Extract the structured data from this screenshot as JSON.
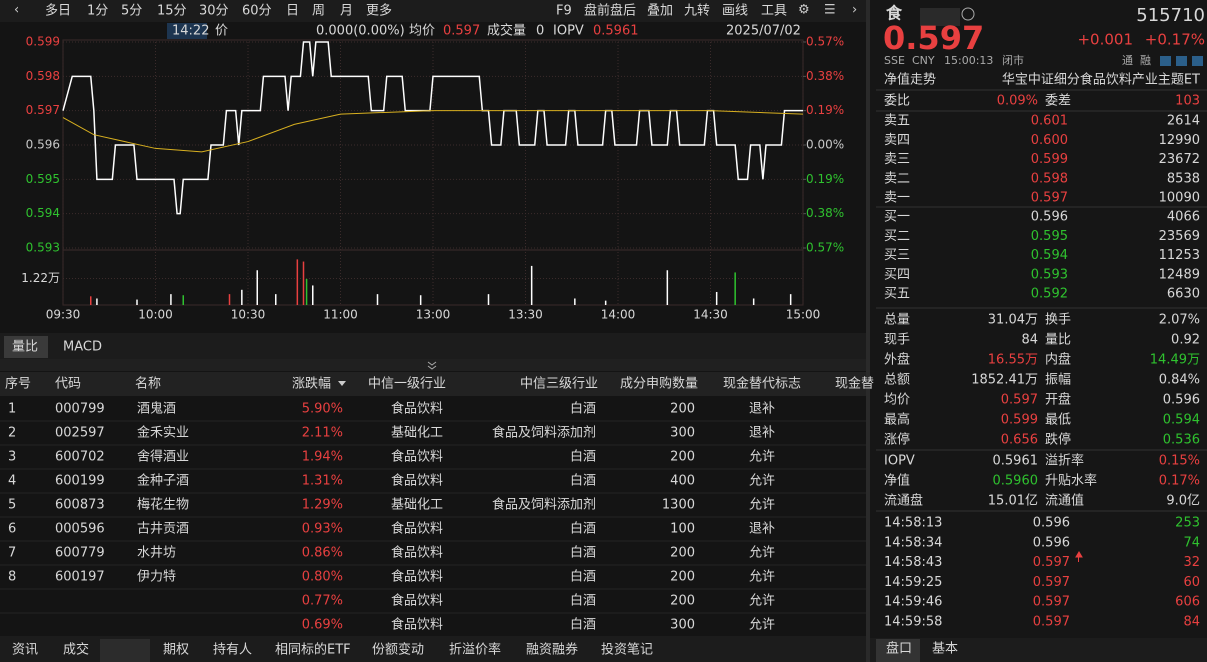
{
  "toolbar": {
    "periods": [
      "多日",
      "1分",
      "5分",
      "15分",
      "30分",
      "60分",
      "日",
      "周",
      "月",
      "更多"
    ],
    "tools": [
      "F9",
      "盘前盘后",
      "叠加",
      "九转",
      "画线",
      "工具"
    ]
  },
  "chart_info": {
    "time": "14:22",
    "price_label": "价",
    "change": "0.000(0.00%)",
    "avg_label": "均价",
    "avg": "0.597",
    "volume_label": "成交量",
    "volume": "0",
    "iopv_label": "IOPV",
    "iopv": "0.5961",
    "date": "2025/07/02"
  },
  "chart_data": [
    {
      "type": "line",
      "xlim": [
        0,
        240
      ],
      "ylim": [
        0.593,
        0.599
      ],
      "yticks": [
        0.599,
        0.598,
        0.597,
        0.596,
        0.595,
        0.594,
        0.593
      ],
      "ytick_colors": [
        "#e84040",
        "#e84040",
        "#e84040",
        "#c8c8c8",
        "#2fc22f",
        "#2fc22f",
        "#2fc22f"
      ],
      "y2lim": [
        -0.57,
        0.57
      ],
      "y2ticks": [
        {
          "value": 0.57,
          "label": "0.57%"
        },
        {
          "value": 0.38,
          "label": "0.38%"
        },
        {
          "value": 0.19,
          "label": "0.19%"
        },
        {
          "value": 0,
          "label": "0.00%"
        },
        {
          "value": -0.19,
          "label": "0.19%"
        },
        {
          "value": -0.38,
          "label": "0.38%"
        },
        {
          "value": -0.57,
          "label": "0.57%"
        }
      ],
      "xticks": [
        {
          "value": 0,
          "label": "09:30"
        },
        {
          "value": 30,
          "label": "10:00"
        },
        {
          "value": 60,
          "label": "10:30"
        },
        {
          "value": 90,
          "label": "11:00"
        },
        {
          "value": 120,
          "label": "13:00"
        },
        {
          "value": 150,
          "label": "13:30"
        },
        {
          "value": 180,
          "label": "14:00"
        },
        {
          "value": 210,
          "label": "14:30"
        },
        {
          "value": 240,
          "label": "15:00"
        }
      ],
      "grid": true,
      "series": [
        {
          "color": "#ffffff",
          "x": [
            0,
            3,
            9,
            10,
            11,
            16,
            17,
            23,
            24,
            36,
            37,
            38,
            39,
            47,
            48,
            52,
            53,
            56,
            57,
            58,
            64,
            65,
            72,
            73,
            74,
            77,
            78,
            80,
            81,
            82,
            86,
            87,
            90,
            99,
            100,
            104,
            105,
            110,
            111,
            119,
            120,
            135,
            136,
            138,
            139,
            142,
            143,
            147,
            148,
            153,
            154,
            156,
            157,
            163,
            164,
            166,
            167,
            175,
            176,
            178,
            179,
            186,
            187,
            190,
            191,
            196,
            197,
            199,
            200,
            208,
            209,
            211,
            212,
            218,
            219,
            222,
            223,
            226,
            227,
            228,
            233,
            234,
            240
          ],
          "values": [
            0.597,
            0.598,
            0.598,
            0.597,
            0.595,
            0.595,
            0.596,
            0.596,
            0.595,
            0.595,
            0.594,
            0.594,
            0.595,
            0.595,
            0.596,
            0.596,
            0.597,
            0.597,
            0.596,
            0.597,
            0.597,
            0.598,
            0.598,
            0.597,
            0.598,
            0.598,
            0.599,
            0.599,
            0.598,
            0.599,
            0.599,
            0.598,
            0.598,
            0.598,
            0.597,
            0.597,
            0.598,
            0.598,
            0.597,
            0.597,
            0.598,
            0.598,
            0.597,
            0.597,
            0.596,
            0.596,
            0.597,
            0.597,
            0.596,
            0.596,
            0.597,
            0.597,
            0.596,
            0.596,
            0.597,
            0.597,
            0.596,
            0.596,
            0.597,
            0.597,
            0.596,
            0.596,
            0.597,
            0.597,
            0.596,
            0.596,
            0.597,
            0.597,
            0.596,
            0.596,
            0.597,
            0.597,
            0.596,
            0.596,
            0.595,
            0.595,
            0.596,
            0.596,
            0.595,
            0.596,
            0.596,
            0.597,
            0.597
          ]
        },
        {
          "color": "#d8b020",
          "x": [
            0,
            10,
            30,
            45,
            60,
            75,
            90,
            120,
            150,
            180,
            210,
            240
          ],
          "values": [
            0.5968,
            0.5963,
            0.5959,
            0.5958,
            0.5961,
            0.5966,
            0.5969,
            0.597,
            0.597,
            0.597,
            0.597,
            0.5969
          ]
        }
      ]
    },
    {
      "type": "bar",
      "xlim": [
        0,
        240
      ],
      "ylim": [
        0,
        24400
      ],
      "yticks": [
        {
          "value": 12200,
          "label": "1.22万"
        }
      ],
      "x": [
        9,
        11,
        24,
        35,
        39,
        54,
        58,
        63,
        69,
        76,
        78,
        79,
        81,
        102,
        116,
        138,
        152,
        166,
        176,
        196,
        212,
        218,
        224,
        236
      ],
      "values": [
        4000,
        3000,
        2500,
        5000,
        4500,
        5000,
        7000,
        16000,
        5000,
        21000,
        20000,
        12000,
        9000,
        5000,
        4500,
        5000,
        18000,
        3000,
        2000,
        16000,
        6000,
        15000,
        3000,
        5000
      ],
      "colors": [
        "#e84040",
        "#ffffff",
        "#ffffff",
        "#ffffff",
        "#2fc22f",
        "#e84040",
        "#ffffff",
        "#ffffff",
        "#ffffff",
        "#e84040",
        "#e84040",
        "#2fc22f",
        "#ffffff",
        "#ffffff",
        "#ffffff",
        "#ffffff",
        "#ffffff",
        "#ffffff",
        "#ffffff",
        "#ffffff",
        "#ffffff",
        "#2fc22f",
        "#ffffff",
        "#ffffff"
      ]
    }
  ],
  "sub_tabs": [
    "量比",
    "MACD"
  ],
  "table": {
    "columns": [
      "序号",
      "代码",
      "名称",
      "涨跌幅",
      "中信一级行业",
      "中信三级行业",
      "成分申购数量",
      "现金替代标志",
      "现金替"
    ],
    "rows": [
      [
        "1",
        "000799",
        "酒鬼酒",
        "5.90%",
        "食品饮料",
        "白酒",
        "200",
        "退补"
      ],
      [
        "2",
        "002597",
        "金禾实业",
        "2.11%",
        "基础化工",
        "食品及饲料添加剂",
        "300",
        "退补"
      ],
      [
        "3",
        "600702",
        "舍得酒业",
        "1.94%",
        "食品饮料",
        "白酒",
        "200",
        "允许"
      ],
      [
        "4",
        "600199",
        "金种子酒",
        "1.31%",
        "食品饮料",
        "白酒",
        "400",
        "允许"
      ],
      [
        "5",
        "600873",
        "梅花生物",
        "1.29%",
        "基础化工",
        "食品及饲料添加剂",
        "1300",
        "允许"
      ],
      [
        "6",
        "000596",
        "古井贡酒",
        "0.93%",
        "食品饮料",
        "白酒",
        "100",
        "退补"
      ],
      [
        "7",
        "600779",
        "水井坊",
        "0.86%",
        "食品饮料",
        "白酒",
        "200",
        "允许"
      ],
      [
        "8",
        "600197",
        "伊力特",
        "0.80%",
        "食品饮料",
        "白酒",
        "200",
        "允许"
      ],
      [
        null,
        null,
        null,
        "0.77%",
        "食品饮料",
        "白酒",
        "200",
        "允许"
      ],
      [
        null,
        null,
        null,
        "0.69%",
        "食品饮料",
        "白酒",
        "300",
        "允许"
      ]
    ]
  },
  "bottom_tabs": [
    "资讯",
    "成交",
    "期权",
    "持有人",
    "相同标的ETF",
    "份额变动",
    "折溢价率",
    "融资融券",
    "投资笔记"
  ],
  "quote": {
    "name": "食",
    "code": "515710",
    "price": "0.597",
    "change": "+0.001",
    "change_pct": "+0.17%",
    "exchange": "SSE",
    "currency": "CNY",
    "time": "15:00:13",
    "status": "闭市",
    "badges": [
      "通",
      "融"
    ],
    "nav_link": "净值走势",
    "fund_name": "华宝中证细分食品饮料产业主题ET"
  },
  "order_book": {
    "summary": [
      "委比",
      "0.09%",
      "委差",
      "103"
    ],
    "asks": [
      [
        "卖五",
        "0.601",
        "2614"
      ],
      [
        "卖四",
        "0.600",
        "12990"
      ],
      [
        "卖三",
        "0.599",
        "23672"
      ],
      [
        "卖二",
        "0.598",
        "8538"
      ],
      [
        "卖一",
        "0.597",
        "10090"
      ]
    ],
    "bids": [
      [
        "买一",
        "0.596",
        "4066"
      ],
      [
        "买二",
        "0.595",
        "23569"
      ],
      [
        "买三",
        "0.594",
        "11253"
      ],
      [
        "买四",
        "0.593",
        "12489"
      ],
      [
        "买五",
        "0.592",
        "6630"
      ]
    ]
  },
  "stats": [
    [
      "总量",
      "31.04万",
      "换手",
      "2.07%"
    ],
    [
      "现手",
      "84",
      "量比",
      "0.92"
    ],
    [
      "外盘",
      "16.55万",
      "内盘",
      "14.49万"
    ],
    [
      "总额",
      "1852.41万",
      "振幅",
      "0.84%"
    ],
    [
      "均价",
      "0.597",
      "开盘",
      "0.596"
    ],
    [
      "最高",
      "0.599",
      "最低",
      "0.594"
    ],
    [
      "涨停",
      "0.656",
      "跌停",
      "0.536"
    ]
  ],
  "nav": [
    [
      "IOPV",
      "0.5961",
      "溢折率",
      "0.15%"
    ],
    [
      "净值",
      "0.5960",
      "升贴水率",
      "0.17%"
    ],
    [
      "流通盘",
      "15.01亿",
      "流通值",
      "9.0亿"
    ]
  ],
  "trades": [
    [
      "14:58:13",
      "0.596",
      "253"
    ],
    [
      "14:58:34",
      "0.596",
      "74"
    ],
    [
      "14:58:43",
      "0.597",
      "32"
    ],
    [
      "14:59:25",
      "0.597",
      "60"
    ],
    [
      "14:59:46",
      "0.597",
      "606"
    ],
    [
      "14:59:58",
      "0.597",
      "84"
    ]
  ],
  "side_tabs": [
    "盘口",
    "基本"
  ]
}
